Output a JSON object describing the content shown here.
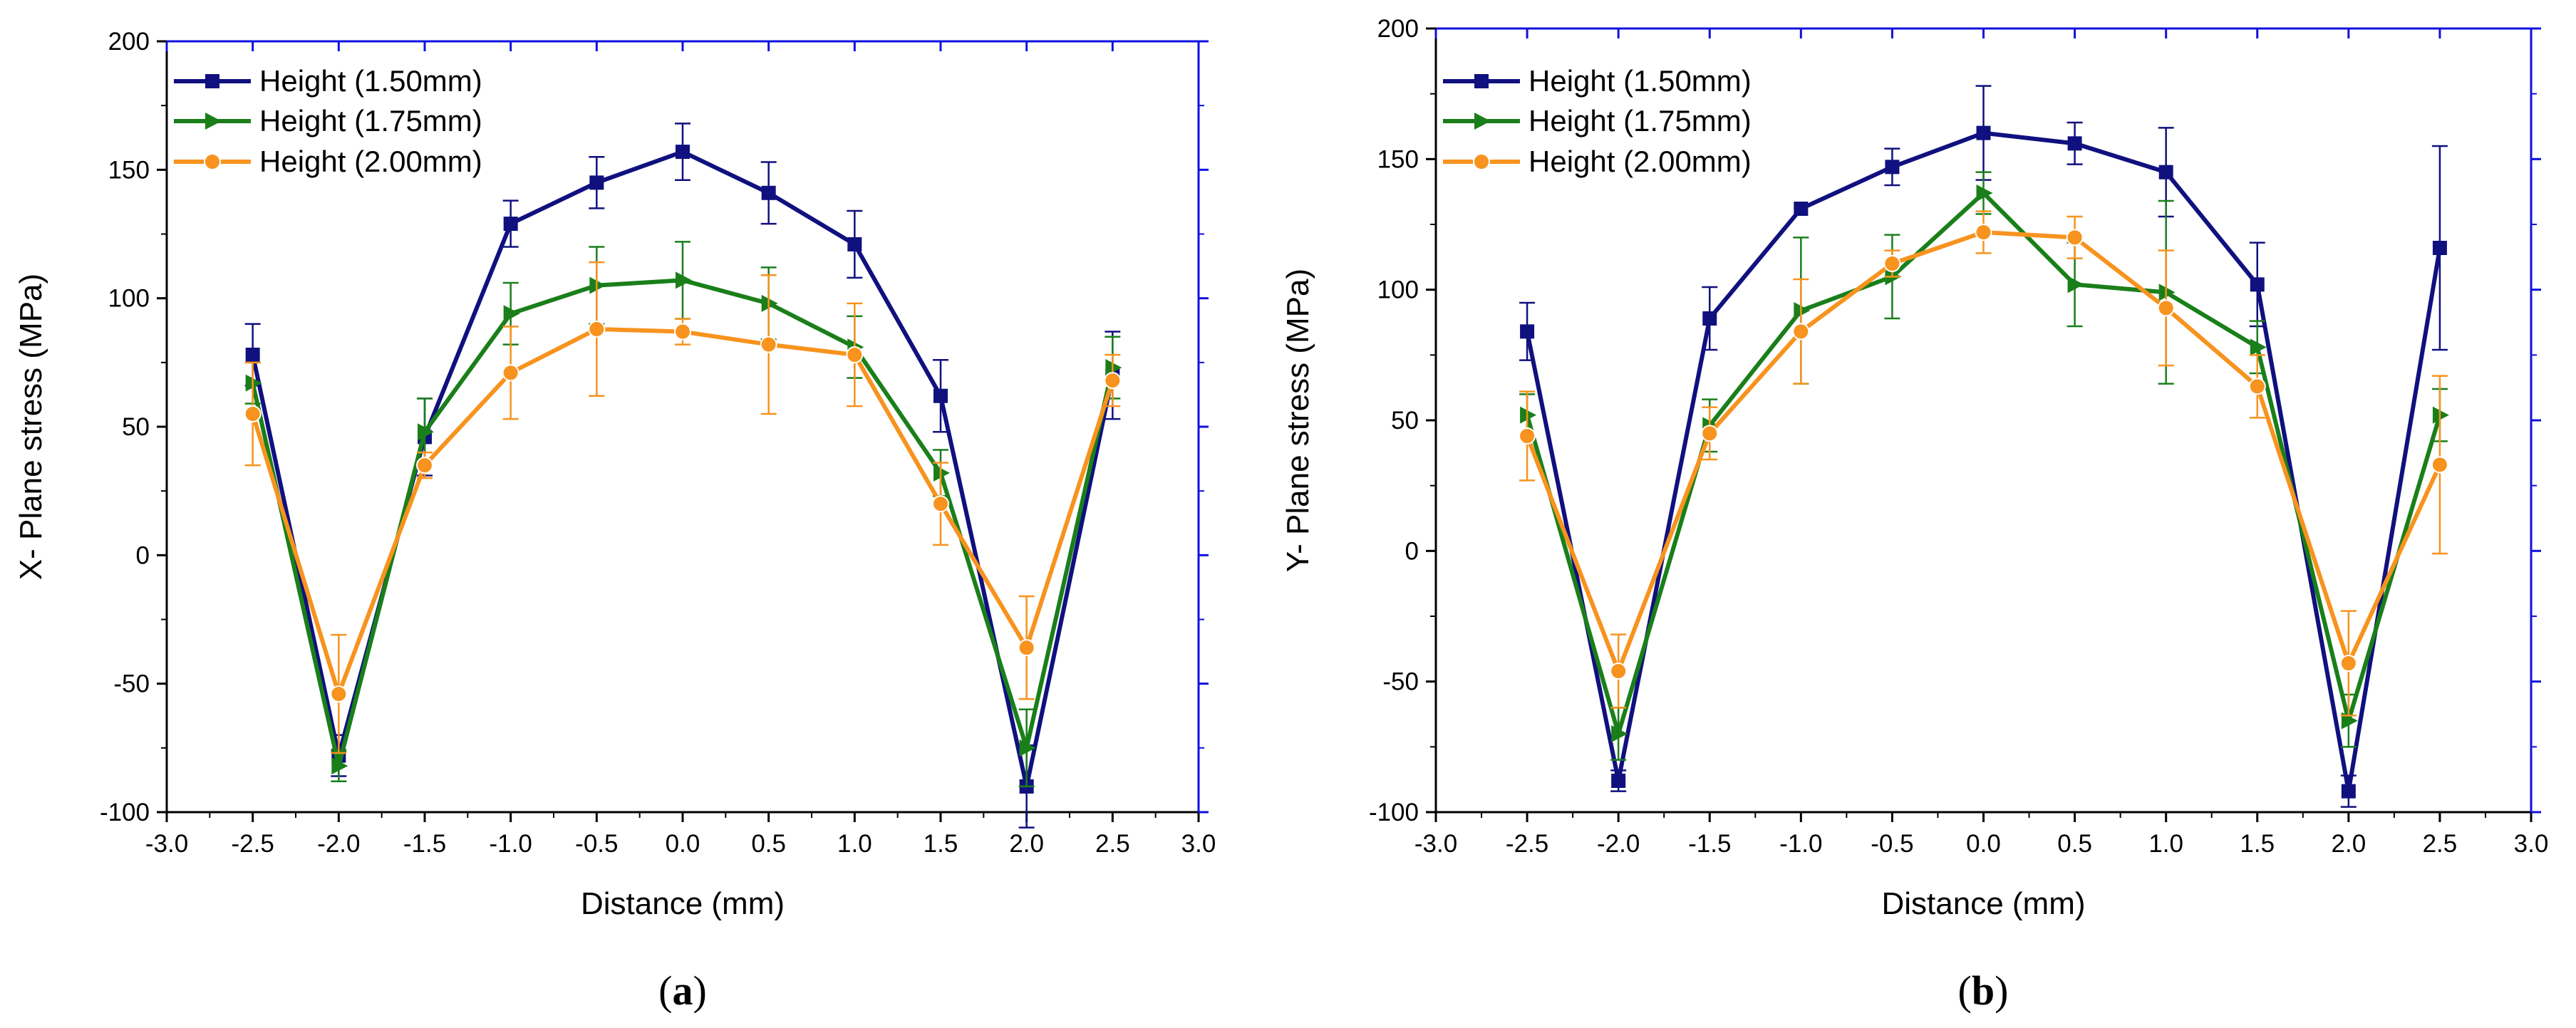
{
  "chart_data": [
    {
      "type": "line",
      "panel_label": "a",
      "title": "",
      "xlabel": "Distance (mm)",
      "ylabel": "X- Plane stress (MPa)",
      "xlim": [
        -3.0,
        3.0
      ],
      "ylim": [
        -100,
        200
      ],
      "xticks": [
        "-3.0",
        "-2.5",
        "-2.0",
        "-1.5",
        "-1.0",
        "-0.5",
        "0.0",
        "0.5",
        "1.0",
        "1.5",
        "2.0",
        "2.5",
        "3.0"
      ],
      "yticks": [
        "-100",
        "-50",
        "0",
        "50",
        "100",
        "150",
        "200"
      ],
      "legend_position": "top-left",
      "x": [
        -2.5,
        -2.0,
        -1.5,
        -1.0,
        -0.5,
        0.0,
        0.5,
        1.0,
        1.5,
        2.0,
        2.5
      ],
      "series": [
        {
          "name": "Height (1.50mm)",
          "color": "#10107f",
          "marker": "square",
          "values": [
            78,
            -78,
            46,
            129,
            145,
            157,
            141,
            121,
            62,
            -90,
            70
          ],
          "errors": [
            12,
            8,
            15,
            9,
            10,
            11,
            12,
            13,
            14,
            16,
            17
          ]
        },
        {
          "name": "Height (1.75mm)",
          "color": "#1a7f1a",
          "marker": "triangle-right",
          "values": [
            67,
            -82,
            48,
            94,
            105,
            107,
            98,
            81,
            32,
            -75,
            73
          ],
          "errors": [
            8,
            6,
            13,
            12,
            15,
            15,
            14,
            12,
            9,
            15,
            12
          ]
        },
        {
          "name": "Height (2.00mm)",
          "color": "#f7931e",
          "marker": "circle",
          "values": [
            55,
            -54,
            35,
            71,
            88,
            87,
            82,
            78,
            20,
            -36,
            68
          ],
          "errors": [
            20,
            23,
            5,
            18,
            26,
            5,
            27,
            20,
            16,
            20,
            10
          ]
        }
      ]
    },
    {
      "type": "line",
      "panel_label": "b",
      "title": "",
      "xlabel": "Distance (mm)",
      "ylabel": "Y- Plane stress (MPa)",
      "xlim": [
        -3.0,
        3.0
      ],
      "ylim": [
        -100,
        200
      ],
      "xticks": [
        "-3.0",
        "-2.5",
        "-2.0",
        "-1.5",
        "-1.0",
        "-0.5",
        "0.0",
        "0.5",
        "1.0",
        "1.5",
        "2.0",
        "2.5",
        "3.0"
      ],
      "yticks": [
        "-100",
        "-50",
        "0",
        "50",
        "100",
        "150",
        "200"
      ],
      "legend_position": "top-left",
      "x": [
        -2.5,
        -2.0,
        -1.5,
        -1.0,
        -0.5,
        0.0,
        0.5,
        1.0,
        1.5,
        2.0,
        2.5
      ],
      "series": [
        {
          "name": "Height (1.50mm)",
          "color": "#10107f",
          "marker": "square",
          "values": [
            84,
            -88,
            89,
            131,
            147,
            160,
            156,
            145,
            102,
            -92,
            116
          ],
          "errors": [
            11,
            4,
            12,
            0,
            7,
            18,
            8,
            17,
            16,
            6,
            39
          ]
        },
        {
          "name": "Height (1.75mm)",
          "color": "#1a7f1a",
          "marker": "triangle-right",
          "values": [
            52,
            -70,
            48,
            92,
            105,
            137,
            102,
            99,
            78,
            -65,
            52
          ],
          "errors": [
            8,
            10,
            10,
            28,
            16,
            8,
            16,
            35,
            10,
            10,
            10
          ]
        },
        {
          "name": "Height (2.00mm)",
          "color": "#f7931e",
          "marker": "circle",
          "values": [
            44,
            -46,
            45,
            84,
            110,
            122,
            120,
            93,
            63,
            -43,
            33
          ],
          "errors": [
            17,
            14,
            10,
            20,
            5,
            8,
            8,
            22,
            12,
            20,
            34
          ]
        }
      ]
    }
  ]
}
